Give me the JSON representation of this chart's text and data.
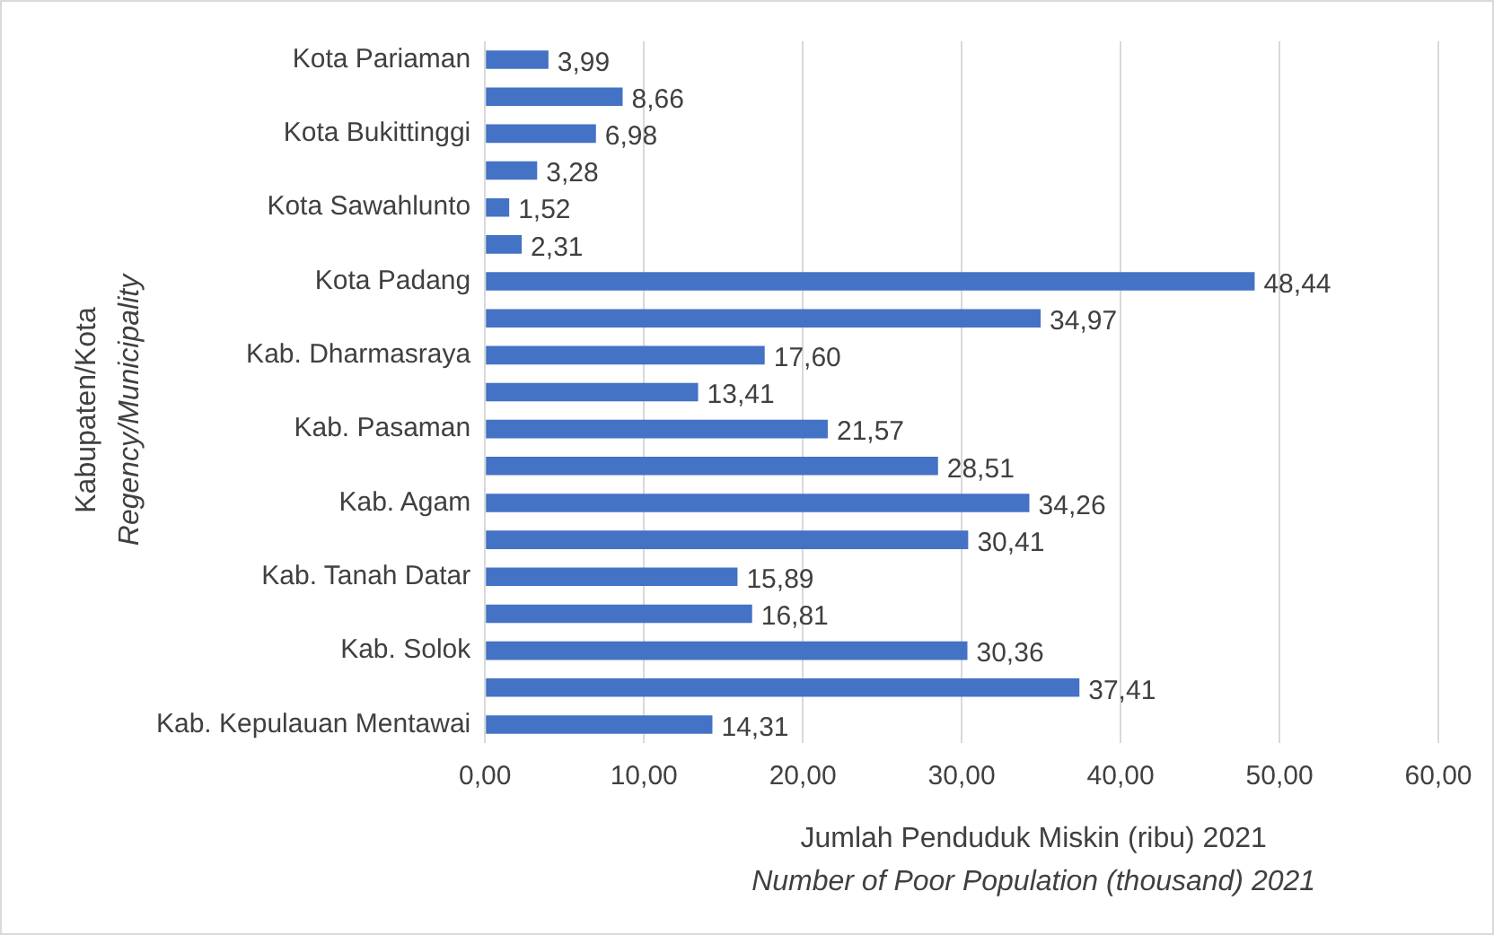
{
  "chart_data": {
    "type": "bar",
    "orientation": "horizontal",
    "xlabel": "Jumlah Penduduk Miskin (ribu) 2021\nNumber of Poor Population (thousand) 2021",
    "ylabel": "Kabupaten/Kota\nRegency/Municipality",
    "categories": [
      "Kota Pariaman",
      null,
      "Kota Bukittinggi",
      null,
      "Kota Sawahlunto",
      null,
      "Kota Padang",
      null,
      "Kab. Dharmasraya",
      null,
      "Kab. Pasaman",
      null,
      "Kab. Agam",
      null,
      "Kab. Tanah Datar",
      null,
      "Kab. Solok",
      null,
      "Kab. Kepulauan Mentawai"
    ],
    "values": [
      3.99,
      8.66,
      6.98,
      3.28,
      1.52,
      2.31,
      48.44,
      34.97,
      17.6,
      13.41,
      21.57,
      28.51,
      34.26,
      30.41,
      15.89,
      16.81,
      30.36,
      37.41,
      14.31
    ],
    "value_labels": [
      "3,99",
      "8,66",
      "6,98",
      "3,28",
      "1,52",
      "2,31",
      "48,44",
      "34,97",
      "17,60",
      "13,41",
      "21,57",
      "28,51",
      "34,26",
      "30,41",
      "15,89",
      "16,81",
      "30,36",
      "37,41",
      "14,31"
    ],
    "color": "#4472c4",
    "xlim": [
      0,
      60
    ],
    "xticks": [
      {
        "value": 0,
        "label": "0,00"
      },
      {
        "value": 10,
        "label": "10,00"
      },
      {
        "value": 20,
        "label": "20,00"
      },
      {
        "value": 30,
        "label": "30,00"
      },
      {
        "value": 40,
        "label": "40,00"
      },
      {
        "value": 50,
        "label": "50,00"
      },
      {
        "value": 60,
        "label": "60,00"
      }
    ],
    "grid": "x"
  }
}
